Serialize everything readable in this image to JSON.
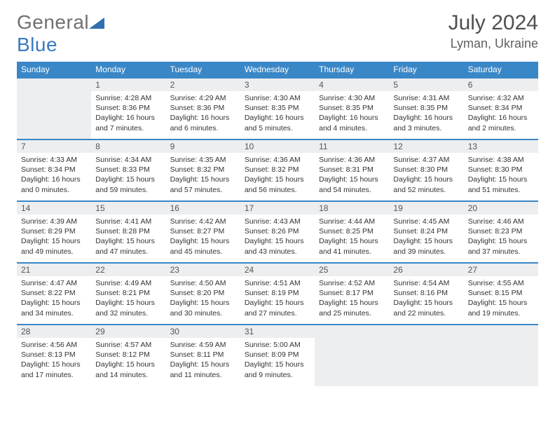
{
  "brand": {
    "part1": "General",
    "part2": "Blue",
    "iconColor": "#2f6fb0"
  },
  "title": "July 2024",
  "location": "Lyman, Ukraine",
  "weekdays": [
    "Sunday",
    "Monday",
    "Tuesday",
    "Wednesday",
    "Thursday",
    "Friday",
    "Saturday"
  ],
  "colors": {
    "headerBg": "#3a87c7",
    "headerText": "#ffffff",
    "dayNumBg": "#eceef0",
    "rowSep": "#3a87c7",
    "bodyText": "#333333"
  },
  "days": [
    {
      "n": 1,
      "sunrise": "4:28 AM",
      "sunset": "8:36 PM",
      "daylight": "16 hours and 7 minutes."
    },
    {
      "n": 2,
      "sunrise": "4:29 AM",
      "sunset": "8:36 PM",
      "daylight": "16 hours and 6 minutes."
    },
    {
      "n": 3,
      "sunrise": "4:30 AM",
      "sunset": "8:35 PM",
      "daylight": "16 hours and 5 minutes."
    },
    {
      "n": 4,
      "sunrise": "4:30 AM",
      "sunset": "8:35 PM",
      "daylight": "16 hours and 4 minutes."
    },
    {
      "n": 5,
      "sunrise": "4:31 AM",
      "sunset": "8:35 PM",
      "daylight": "16 hours and 3 minutes."
    },
    {
      "n": 6,
      "sunrise": "4:32 AM",
      "sunset": "8:34 PM",
      "daylight": "16 hours and 2 minutes."
    },
    {
      "n": 7,
      "sunrise": "4:33 AM",
      "sunset": "8:34 PM",
      "daylight": "16 hours and 0 minutes."
    },
    {
      "n": 8,
      "sunrise": "4:34 AM",
      "sunset": "8:33 PM",
      "daylight": "15 hours and 59 minutes."
    },
    {
      "n": 9,
      "sunrise": "4:35 AM",
      "sunset": "8:32 PM",
      "daylight": "15 hours and 57 minutes."
    },
    {
      "n": 10,
      "sunrise": "4:36 AM",
      "sunset": "8:32 PM",
      "daylight": "15 hours and 56 minutes."
    },
    {
      "n": 11,
      "sunrise": "4:36 AM",
      "sunset": "8:31 PM",
      "daylight": "15 hours and 54 minutes."
    },
    {
      "n": 12,
      "sunrise": "4:37 AM",
      "sunset": "8:30 PM",
      "daylight": "15 hours and 52 minutes."
    },
    {
      "n": 13,
      "sunrise": "4:38 AM",
      "sunset": "8:30 PM",
      "daylight": "15 hours and 51 minutes."
    },
    {
      "n": 14,
      "sunrise": "4:39 AM",
      "sunset": "8:29 PM",
      "daylight": "15 hours and 49 minutes."
    },
    {
      "n": 15,
      "sunrise": "4:41 AM",
      "sunset": "8:28 PM",
      "daylight": "15 hours and 47 minutes."
    },
    {
      "n": 16,
      "sunrise": "4:42 AM",
      "sunset": "8:27 PM",
      "daylight": "15 hours and 45 minutes."
    },
    {
      "n": 17,
      "sunrise": "4:43 AM",
      "sunset": "8:26 PM",
      "daylight": "15 hours and 43 minutes."
    },
    {
      "n": 18,
      "sunrise": "4:44 AM",
      "sunset": "8:25 PM",
      "daylight": "15 hours and 41 minutes."
    },
    {
      "n": 19,
      "sunrise": "4:45 AM",
      "sunset": "8:24 PM",
      "daylight": "15 hours and 39 minutes."
    },
    {
      "n": 20,
      "sunrise": "4:46 AM",
      "sunset": "8:23 PM",
      "daylight": "15 hours and 37 minutes."
    },
    {
      "n": 21,
      "sunrise": "4:47 AM",
      "sunset": "8:22 PM",
      "daylight": "15 hours and 34 minutes."
    },
    {
      "n": 22,
      "sunrise": "4:49 AM",
      "sunset": "8:21 PM",
      "daylight": "15 hours and 32 minutes."
    },
    {
      "n": 23,
      "sunrise": "4:50 AM",
      "sunset": "8:20 PM",
      "daylight": "15 hours and 30 minutes."
    },
    {
      "n": 24,
      "sunrise": "4:51 AM",
      "sunset": "8:19 PM",
      "daylight": "15 hours and 27 minutes."
    },
    {
      "n": 25,
      "sunrise": "4:52 AM",
      "sunset": "8:17 PM",
      "daylight": "15 hours and 25 minutes."
    },
    {
      "n": 26,
      "sunrise": "4:54 AM",
      "sunset": "8:16 PM",
      "daylight": "15 hours and 22 minutes."
    },
    {
      "n": 27,
      "sunrise": "4:55 AM",
      "sunset": "8:15 PM",
      "daylight": "15 hours and 19 minutes."
    },
    {
      "n": 28,
      "sunrise": "4:56 AM",
      "sunset": "8:13 PM",
      "daylight": "15 hours and 17 minutes."
    },
    {
      "n": 29,
      "sunrise": "4:57 AM",
      "sunset": "8:12 PM",
      "daylight": "15 hours and 14 minutes."
    },
    {
      "n": 30,
      "sunrise": "4:59 AM",
      "sunset": "8:11 PM",
      "daylight": "15 hours and 11 minutes."
    },
    {
      "n": 31,
      "sunrise": "5:00 AM",
      "sunset": "8:09 PM",
      "daylight": "15 hours and 9 minutes."
    }
  ],
  "startCol": 1,
  "labels": {
    "sunrise": "Sunrise:",
    "sunset": "Sunset:",
    "daylight": "Daylight:"
  }
}
